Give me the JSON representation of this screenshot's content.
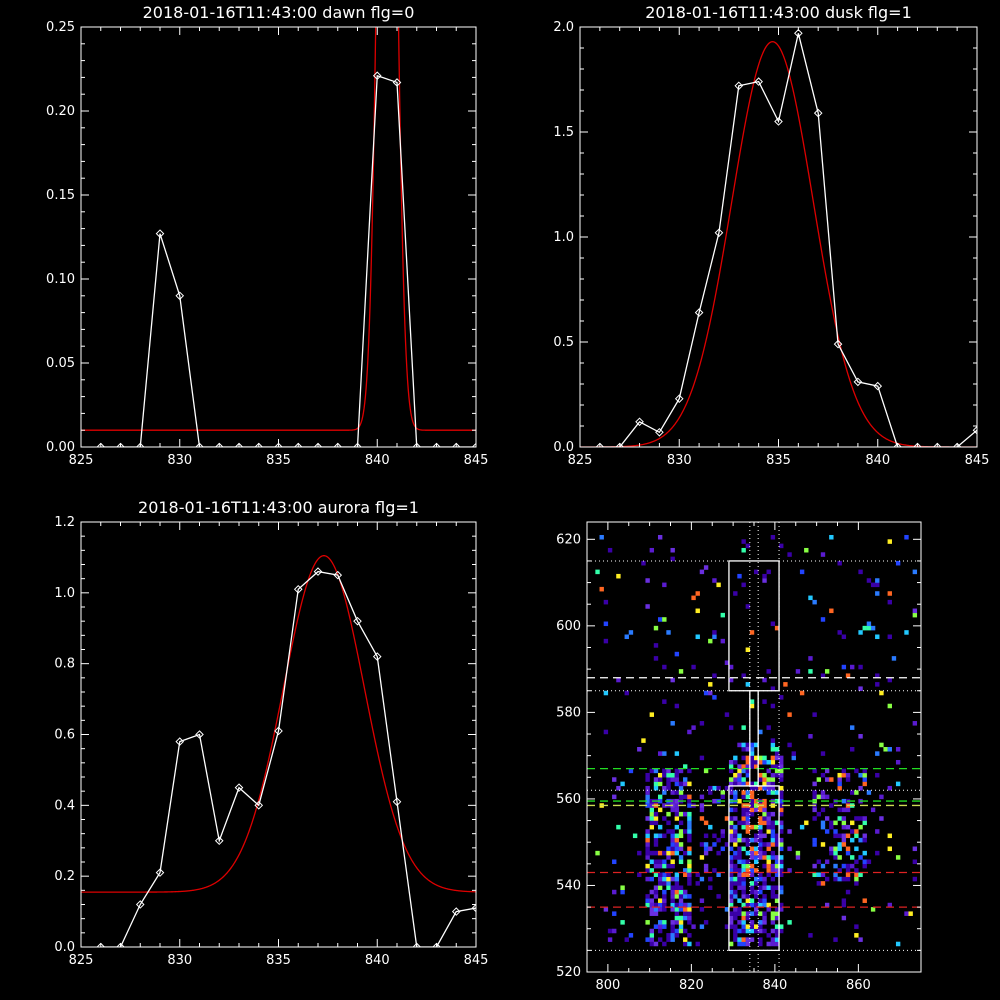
{
  "colors": {
    "background": "#000000",
    "axes": "#ffffff",
    "data_line": "#ffffff",
    "fit_line": "#dd0000",
    "dotted_guides": "#ffffff",
    "green_dashes": "#22dd22",
    "yellow_dashes": "#ccdd55",
    "red_dashes": "#dd2222",
    "white_dashes": "#ffffff"
  },
  "chart_data": [
    {
      "type": "line",
      "title": "2018-01-16T11:43:00 dawn flg=0",
      "xlim": [
        825,
        845
      ],
      "ylim": [
        0,
        0.25
      ],
      "xticks": [
        "825",
        "830",
        "835",
        "840",
        "845"
      ],
      "yticks": [
        "0.00",
        "0.05",
        "0.10",
        "0.15",
        "0.20",
        "0.25"
      ],
      "series": [
        {
          "role": "data",
          "marker": "diamond",
          "x": [
            826,
            827,
            828,
            829,
            830,
            831,
            832,
            833,
            834,
            835,
            836,
            837,
            838,
            839,
            840,
            841,
            842,
            843,
            844,
            845
          ],
          "y": [
            0,
            0,
            0,
            0.127,
            0.09,
            0,
            0,
            0,
            0,
            0,
            0,
            0,
            0,
            0,
            0.221,
            0.217,
            0,
            0,
            0,
            0
          ]
        },
        {
          "role": "fit",
          "model": "gaussian",
          "amplitude": 0.62,
          "center": 840.5,
          "sigma": 0.42,
          "baseline": 0.01
        }
      ]
    },
    {
      "type": "line",
      "title": "2018-01-16T11:43:00 dusk flg=1",
      "xlim": [
        825,
        845
      ],
      "ylim": [
        0,
        2.0
      ],
      "xticks": [
        "825",
        "830",
        "835",
        "840",
        "845"
      ],
      "yticks": [
        "0.0",
        "0.5",
        "1.0",
        "1.5",
        "2.0"
      ],
      "series": [
        {
          "role": "data",
          "marker": "diamond",
          "x": [
            826,
            827,
            828,
            829,
            830,
            831,
            832,
            833,
            834,
            835,
            836,
            837,
            838,
            839,
            840,
            841,
            842,
            843,
            844,
            845
          ],
          "y": [
            0,
            0,
            0.12,
            0.07,
            0.23,
            0.64,
            1.02,
            1.72,
            1.74,
            1.55,
            1.97,
            1.59,
            0.49,
            0.31,
            0.29,
            0,
            0,
            0,
            0,
            0.08
          ]
        },
        {
          "role": "fit",
          "model": "gaussian",
          "amplitude": 1.93,
          "center": 834.7,
          "sigma": 2.05,
          "baseline": 0
        }
      ]
    },
    {
      "type": "line",
      "title": "2018-01-16T11:43:00 aurora flg=1",
      "xlim": [
        825,
        845
      ],
      "ylim": [
        0,
        1.2
      ],
      "xticks": [
        "825",
        "830",
        "835",
        "840",
        "845"
      ],
      "yticks": [
        "0.0",
        "0.2",
        "0.4",
        "0.6",
        "0.8",
        "1.0",
        "1.2"
      ],
      "series": [
        {
          "role": "data",
          "marker": "diamond",
          "x": [
            826,
            827,
            828,
            829,
            830,
            831,
            832,
            833,
            834,
            835,
            836,
            837,
            838,
            839,
            840,
            841,
            842,
            843,
            844,
            845
          ],
          "y": [
            0,
            0,
            0.12,
            0.21,
            0.58,
            0.6,
            0.3,
            0.45,
            0.4,
            0.61,
            1.01,
            1.06,
            1.05,
            0.92,
            0.82,
            0.41,
            0,
            0,
            0.1,
            0.11
          ]
        },
        {
          "role": "fit",
          "model": "gaussian",
          "amplitude": 0.95,
          "center": 837.3,
          "sigma": 2.05,
          "baseline": 0.155
        }
      ]
    },
    {
      "type": "heatmap",
      "title": "",
      "xlim": [
        795,
        875
      ],
      "ylim": [
        520,
        624
      ],
      "xticks": [
        "800",
        "820",
        "840",
        "860"
      ],
      "yticks": [
        "520",
        "540",
        "560",
        "580",
        "600",
        "620"
      ],
      "bands": [
        {
          "x_range": [
            809,
            819
          ],
          "y_range": [
            526,
            566
          ],
          "density": 0.55
        },
        {
          "x_range": [
            829,
            841
          ],
          "y_range": [
            526,
            572
          ],
          "density": 0.62
        },
        {
          "x_range": [
            821,
            828
          ],
          "y_range": [
            530,
            562
          ],
          "density": 0.12
        },
        {
          "x_range": [
            849,
            861
          ],
          "y_range": [
            540,
            566
          ],
          "density": 0.3
        },
        {
          "x_range": [
            797,
            874
          ],
          "y_range": [
            526,
            620
          ],
          "density": 0.04
        }
      ],
      "boxes": [
        {
          "x": [
            829,
            841
          ],
          "y": [
            525,
            563
          ]
        },
        {
          "x": [
            829,
            841
          ],
          "y": [
            585,
            615
          ]
        },
        {
          "x": [
            834,
            836
          ],
          "y": [
            563,
            585
          ]
        }
      ],
      "dotted_vlines": [
        834,
        836,
        841
      ],
      "dotted_hlines": [
        525,
        562,
        585,
        615
      ],
      "dashed_hlines": [
        {
          "y": 567,
          "color": "green"
        },
        {
          "y": 559.5,
          "color": "green"
        },
        {
          "y": 558.5,
          "color": "yellow"
        },
        {
          "y": 543,
          "color": "red"
        },
        {
          "y": 535,
          "color": "red"
        },
        {
          "y": 588,
          "color": "white"
        }
      ]
    }
  ]
}
